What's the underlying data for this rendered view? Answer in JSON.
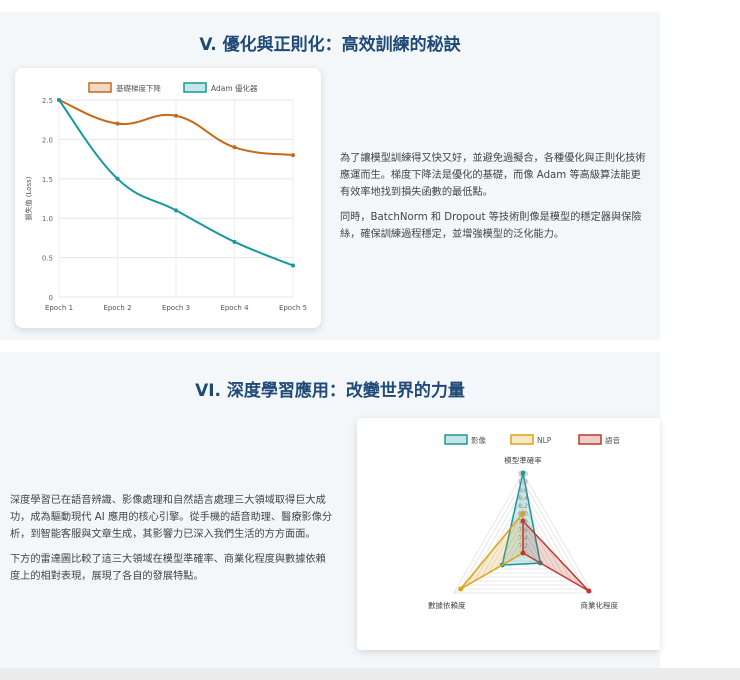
{
  "section5": {
    "title": "V. 優化與正則化：高效訓練的秘訣",
    "para1": "為了讓模型訓練得又快又好，並避免過擬合，各種優化與正則化技術應運而生。梯度下降法是優化的基礎，而像 Adam 等高級算法能更有效率地找到損失函數的最低點。",
    "para2": "同時，BatchNorm 和 Dropout 等技術則像是模型的穩定器與保險絲，確保訓練過程穩定，並增強模型的泛化能力。"
  },
  "section6": {
    "title": "VI. 深度學習應用：改變世界的力量",
    "para1": "深度學習已在語音辨識、影像處理和自然語言處理三大領域取得巨大成功，成為驅動現代 AI 應用的核心引擎。從手機的語音助理、醫療影像分析，到智能客服與文章生成，其影響力已深入我們生活的方方面面。",
    "para2": "下方的雷達圖比較了這三大領域在模型準確率、商業化程度與數據依賴度上的相對表現，展現了各自的發展特點。"
  },
  "chart_data": [
    {
      "type": "line",
      "categories": [
        "Epoch 1",
        "Epoch 2",
        "Epoch 3",
        "Epoch 4",
        "Epoch 5"
      ],
      "series": [
        {
          "name": "基礎梯度下降",
          "values": [
            2.5,
            2.2,
            2.3,
            1.9,
            1.8
          ],
          "color": "#c46a18"
        },
        {
          "name": "Adam 優化器",
          "values": [
            2.5,
            1.5,
            1.1,
            0.7,
            0.4
          ],
          "color": "#17999b"
        }
      ],
      "ylabel": "損失值 (Loss)",
      "yticks": [
        "0",
        "0.5",
        "1.0",
        "1.5",
        "2.0",
        "2.5"
      ],
      "ylim": [
        0,
        2.5
      ],
      "grid": true,
      "legend": "top-center"
    },
    {
      "type": "radar",
      "axes": [
        "模型準確率",
        "商業化程度",
        "數據依賴度"
      ],
      "series": [
        {
          "name": "影像",
          "values": [
            9.0,
            7.5,
            7.6
          ],
          "color": "#17999b"
        },
        {
          "name": "NLP",
          "values": [
            8.0,
            7.0,
            8.8
          ],
          "color": "#e0a21a"
        },
        {
          "name": "語音",
          "values": [
            7.8,
            8.9,
            7.0
          ],
          "color": "#c0392b"
        }
      ],
      "rticks": [
        "7.2",
        "7.4",
        "7.6",
        "7.8",
        "8.0",
        "8.2",
        "8.4",
        "8.6",
        "8.8",
        "9.0"
      ],
      "rlim": [
        7.0,
        9.0
      ],
      "legend": "top-center"
    }
  ]
}
